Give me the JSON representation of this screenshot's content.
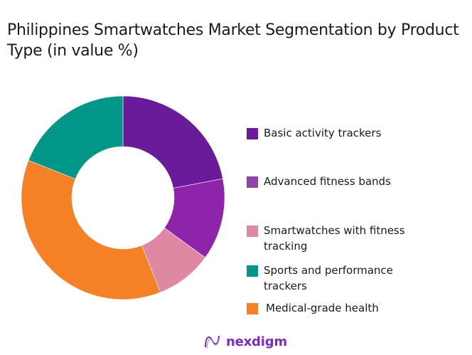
{
  "title": "Philippines Smartwatches Market Segmentation by Product Type (in value %)",
  "chart_data": {
    "type": "pie",
    "variant": "donut",
    "title": "Philippines Smartwatches Market Segmentation by Product Type (in value %)",
    "categories": [
      "Basic activity trackers",
      "Advanced fitness bands",
      "Smartwatches with fitness tracking",
      "Sports and performance trackers",
      "Medical-grade health"
    ],
    "values": [
      22,
      13,
      9,
      19,
      37
    ],
    "slice_order_clockwise_from_top": [
      "Basic activity trackers",
      "Advanced fitness bands",
      "Smartwatches with fitness tracking",
      "Medical-grade health",
      "Sports and performance trackers"
    ],
    "colors": [
      "#6a1b9a",
      "#8e24aa",
      "#de88a2",
      "#009688",
      "#f58025"
    ],
    "legend_position": "right",
    "data_labels": false
  },
  "legend": [
    {
      "label": "Basic activity trackers",
      "color": "#6a1b9a"
    },
    {
      "label": "Advanced fitness bands",
      "color": "#8e44ad"
    },
    {
      "label": "Smartwatches with fitness tracking",
      "color": "#de88a2"
    },
    {
      "label": "Sports and performance trackers",
      "color": "#009688"
    },
    {
      "label": "Medical-grade health",
      "color": "#f58025"
    }
  ],
  "footer": {
    "brand": "nexdigm"
  }
}
